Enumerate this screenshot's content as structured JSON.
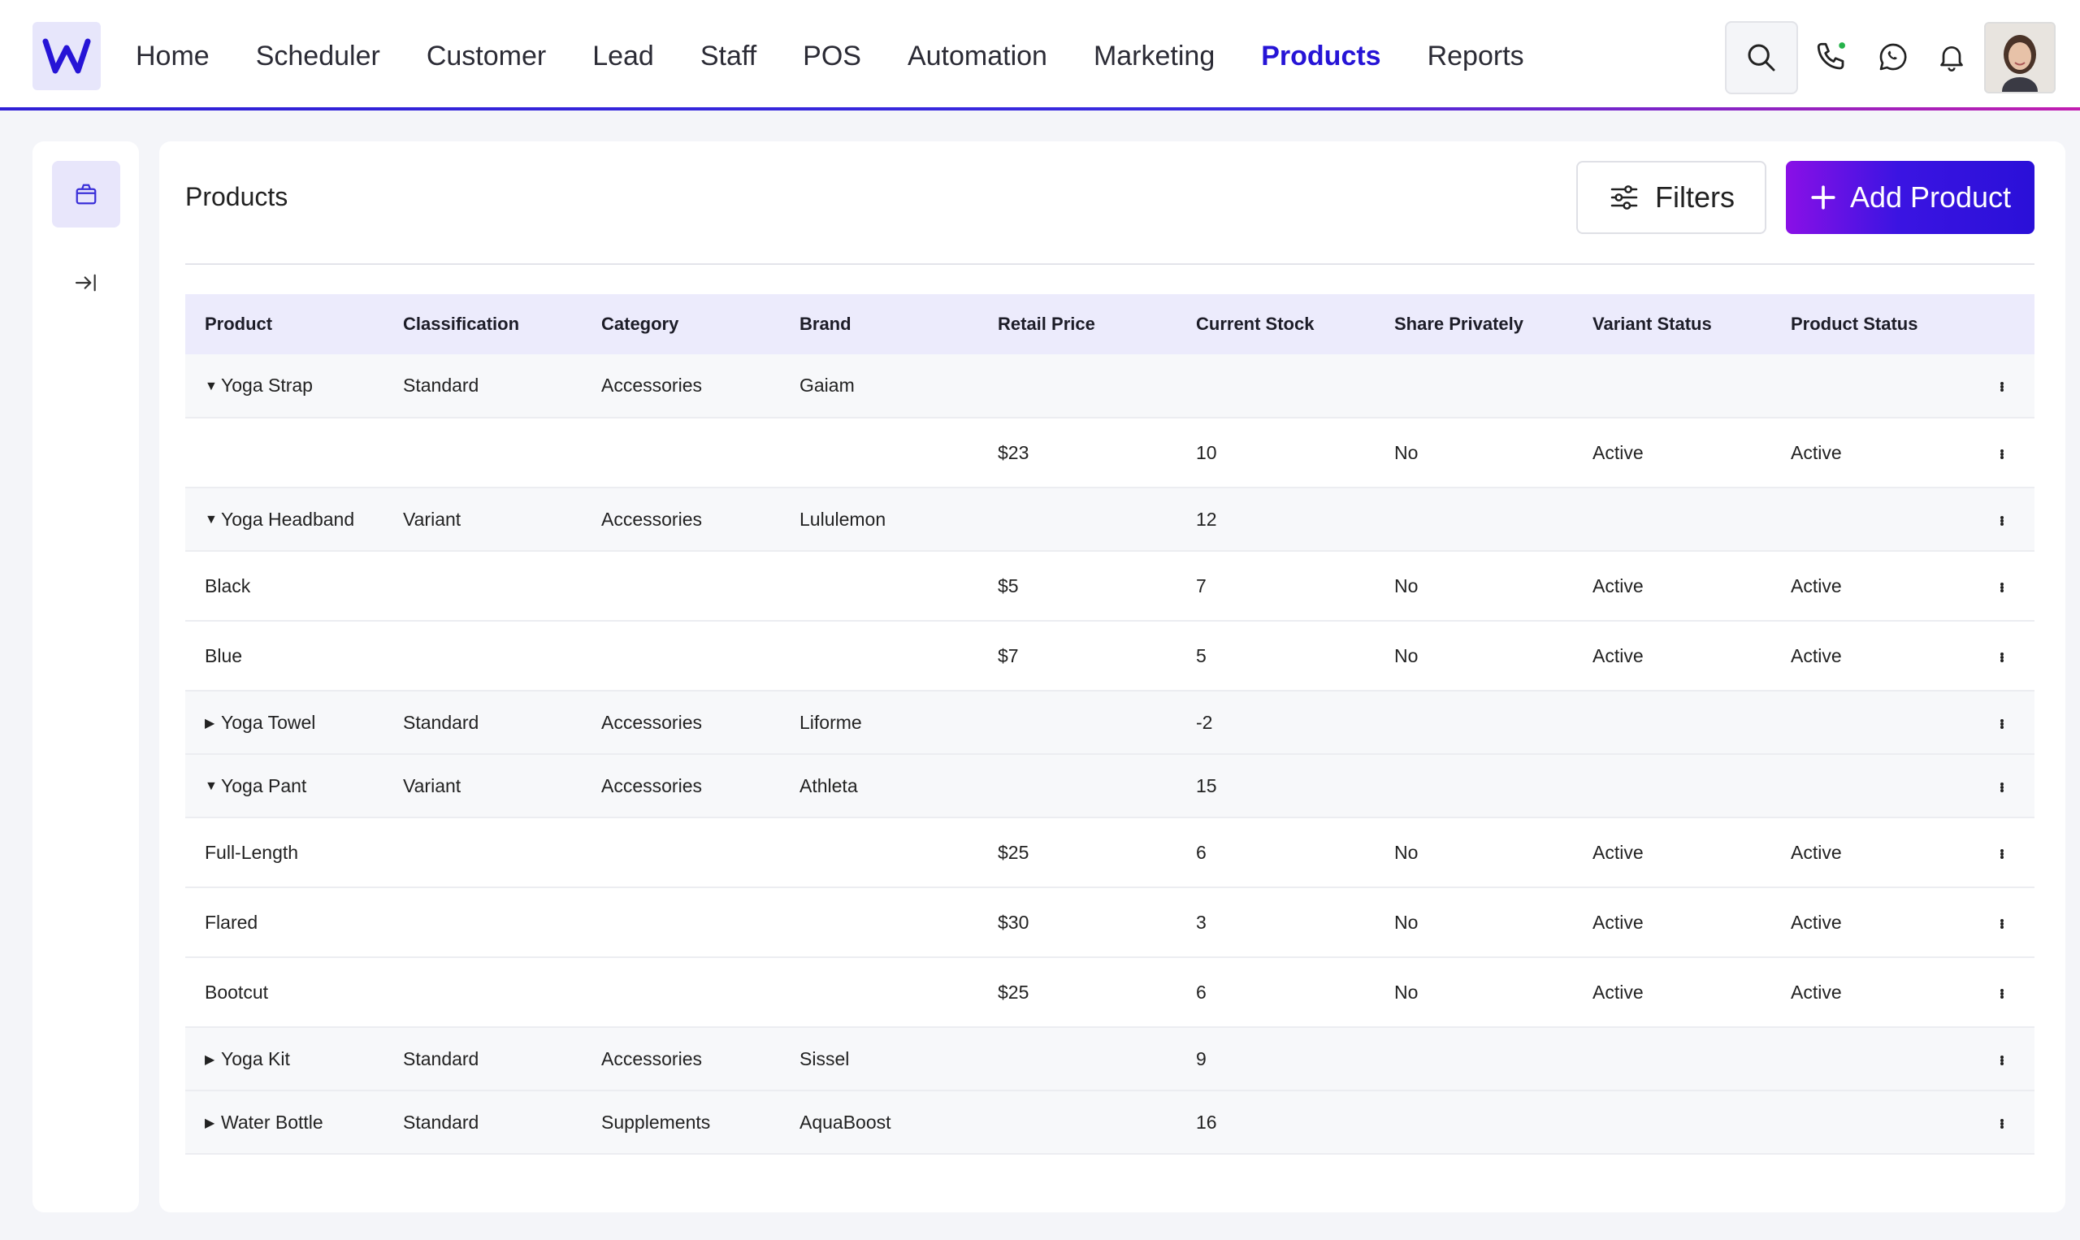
{
  "nav": {
    "items": [
      "Home",
      "Scheduler",
      "Customer",
      "Lead",
      "Staff",
      "POS",
      "Automation",
      "Marketing",
      "Products",
      "Reports"
    ],
    "active": "Products"
  },
  "page": {
    "title": "Products"
  },
  "toolbar": {
    "filters_label": "Filters",
    "add_label": "Add Product"
  },
  "colors": {
    "accent": "#2614d6",
    "header_bg": "#ecebfc"
  },
  "table": {
    "columns": [
      "Product",
      "Classification",
      "Category",
      "Brand",
      "Retail Price",
      "Current Stock",
      "Share Privately",
      "Variant Status",
      "Product Status"
    ],
    "rows": [
      {
        "type": "parent",
        "expanded": true,
        "cells": [
          "Yoga Strap",
          "Standard",
          "Accessories",
          "Gaiam",
          "",
          "",
          "",
          "",
          ""
        ]
      },
      {
        "type": "child",
        "cells": [
          "",
          "",
          "",
          "",
          "$23",
          "10",
          "No",
          "Active",
          "Active"
        ]
      },
      {
        "type": "parent",
        "expanded": true,
        "cells": [
          "Yoga Headband",
          "Variant",
          "Accessories",
          "Lululemon",
          "",
          "12",
          "",
          "",
          ""
        ]
      },
      {
        "type": "child",
        "cells": [
          "Black",
          "",
          "",
          "",
          "$5",
          "7",
          "No",
          "Active",
          "Active"
        ]
      },
      {
        "type": "child",
        "cells": [
          "Blue",
          "",
          "",
          "",
          "$7",
          "5",
          "No",
          "Active",
          "Active"
        ]
      },
      {
        "type": "parent",
        "expanded": false,
        "cells": [
          "Yoga Towel",
          "Standard",
          "Accessories",
          "Liforme",
          "",
          "-2",
          "",
          "",
          ""
        ]
      },
      {
        "type": "parent",
        "expanded": true,
        "cells": [
          "Yoga Pant",
          "Variant",
          "Accessories",
          "Athleta",
          "",
          "15",
          "",
          "",
          ""
        ]
      },
      {
        "type": "child",
        "cells": [
          "Full-Length",
          "",
          "",
          "",
          "$25",
          " 6",
          "No",
          "Active",
          "Active"
        ]
      },
      {
        "type": "child",
        "cells": [
          "Flared",
          "",
          "",
          "",
          "$30",
          "3",
          "No",
          "Active",
          "Active"
        ]
      },
      {
        "type": "child",
        "cells": [
          "Bootcut",
          "",
          "",
          "",
          "$25",
          "6",
          "No",
          "Active",
          "Active"
        ]
      },
      {
        "type": "parent",
        "expanded": false,
        "cells": [
          "Yoga Kit",
          "Standard",
          "Accessories",
          "Sissel",
          "",
          "9",
          "",
          "",
          ""
        ]
      },
      {
        "type": "parent",
        "expanded": false,
        "cells": [
          "Water Bottle",
          "Standard",
          "Supplements",
          "AquaBoost",
          "",
          "16",
          "",
          "",
          ""
        ]
      }
    ]
  }
}
